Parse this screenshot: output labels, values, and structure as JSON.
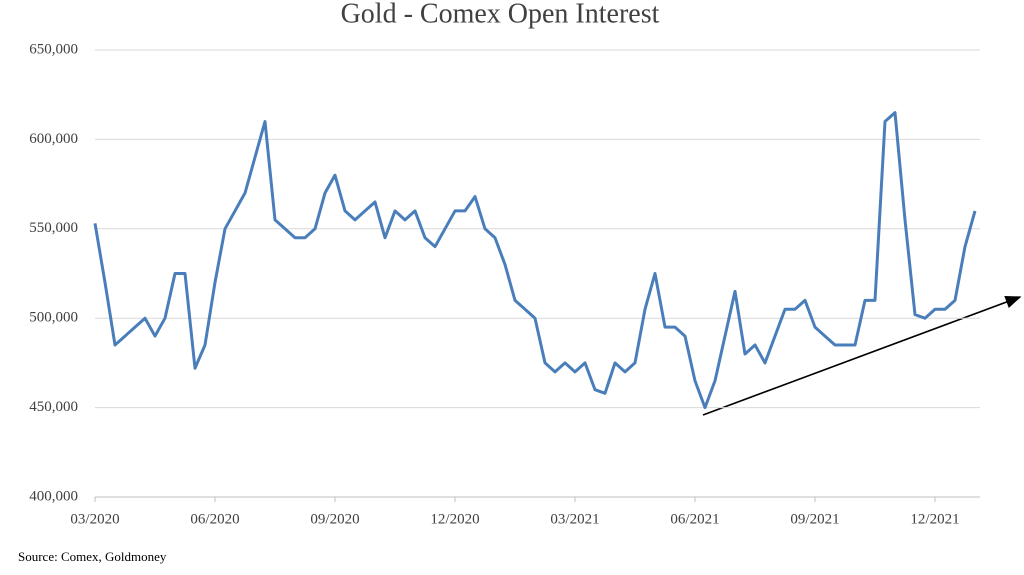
{
  "chart_data": {
    "type": "line",
    "title": "Gold - Comex Open Interest",
    "source": "Source: Comex, Goldmoney",
    "categories": [
      "03/2020",
      null,
      null,
      null,
      null,
      null,
      null,
      null,
      null,
      null,
      null,
      null,
      "06/2020",
      null,
      null,
      null,
      null,
      null,
      null,
      null,
      null,
      null,
      null,
      null,
      "09/2020",
      null,
      null,
      null,
      null,
      null,
      null,
      null,
      null,
      null,
      null,
      null,
      "12/2020",
      null,
      null,
      null,
      null,
      null,
      null,
      null,
      null,
      null,
      null,
      null,
      "03/2021",
      null,
      null,
      null,
      null,
      null,
      null,
      null,
      null,
      null,
      null,
      null,
      "06/2021",
      null,
      null,
      null,
      null,
      null,
      null,
      null,
      null,
      null,
      null,
      null,
      "09/2021",
      null,
      null,
      null,
      null,
      null,
      null,
      null,
      null,
      null,
      null,
      null,
      "12/2021",
      null,
      null,
      null,
      null
    ],
    "series": [
      {
        "name": "Open Interest",
        "color": "#4a7ebb",
        "values": [
          553000,
          520000,
          485000,
          490000,
          495000,
          500000,
          490000,
          500000,
          525000,
          525000,
          472000,
          485000,
          520000,
          550000,
          560000,
          570000,
          590000,
          610000,
          555000,
          550000,
          545000,
          545000,
          550000,
          570000,
          580000,
          560000,
          555000,
          560000,
          565000,
          545000,
          560000,
          555000,
          560000,
          545000,
          540000,
          550000,
          560000,
          560000,
          568000,
          550000,
          545000,
          530000,
          510000,
          505000,
          500000,
          475000,
          470000,
          475000,
          470000,
          475000,
          460000,
          458000,
          475000,
          470000,
          475000,
          505000,
          525000,
          495000,
          495000,
          490000,
          465000,
          450000,
          465000,
          490000,
          515000,
          480000,
          485000,
          475000,
          490000,
          505000,
          505000,
          510000,
          495000,
          490000,
          485000,
          485000,
          485000,
          510000,
          510000,
          610000,
          615000,
          555000,
          502000,
          500000,
          505000,
          505000,
          510000,
          540000,
          560000
        ]
      }
    ],
    "ylim": [
      400000,
      650000
    ],
    "yticks": [
      {
        "value": 400000,
        "label": "400,000"
      },
      {
        "value": 450000,
        "label": "450,000"
      },
      {
        "value": 500000,
        "label": "500,000"
      },
      {
        "value": 550000,
        "label": "550,000"
      },
      {
        "value": 600000,
        "label": "600,000"
      },
      {
        "value": 650000,
        "label": "650,000"
      }
    ],
    "grid": true
  }
}
